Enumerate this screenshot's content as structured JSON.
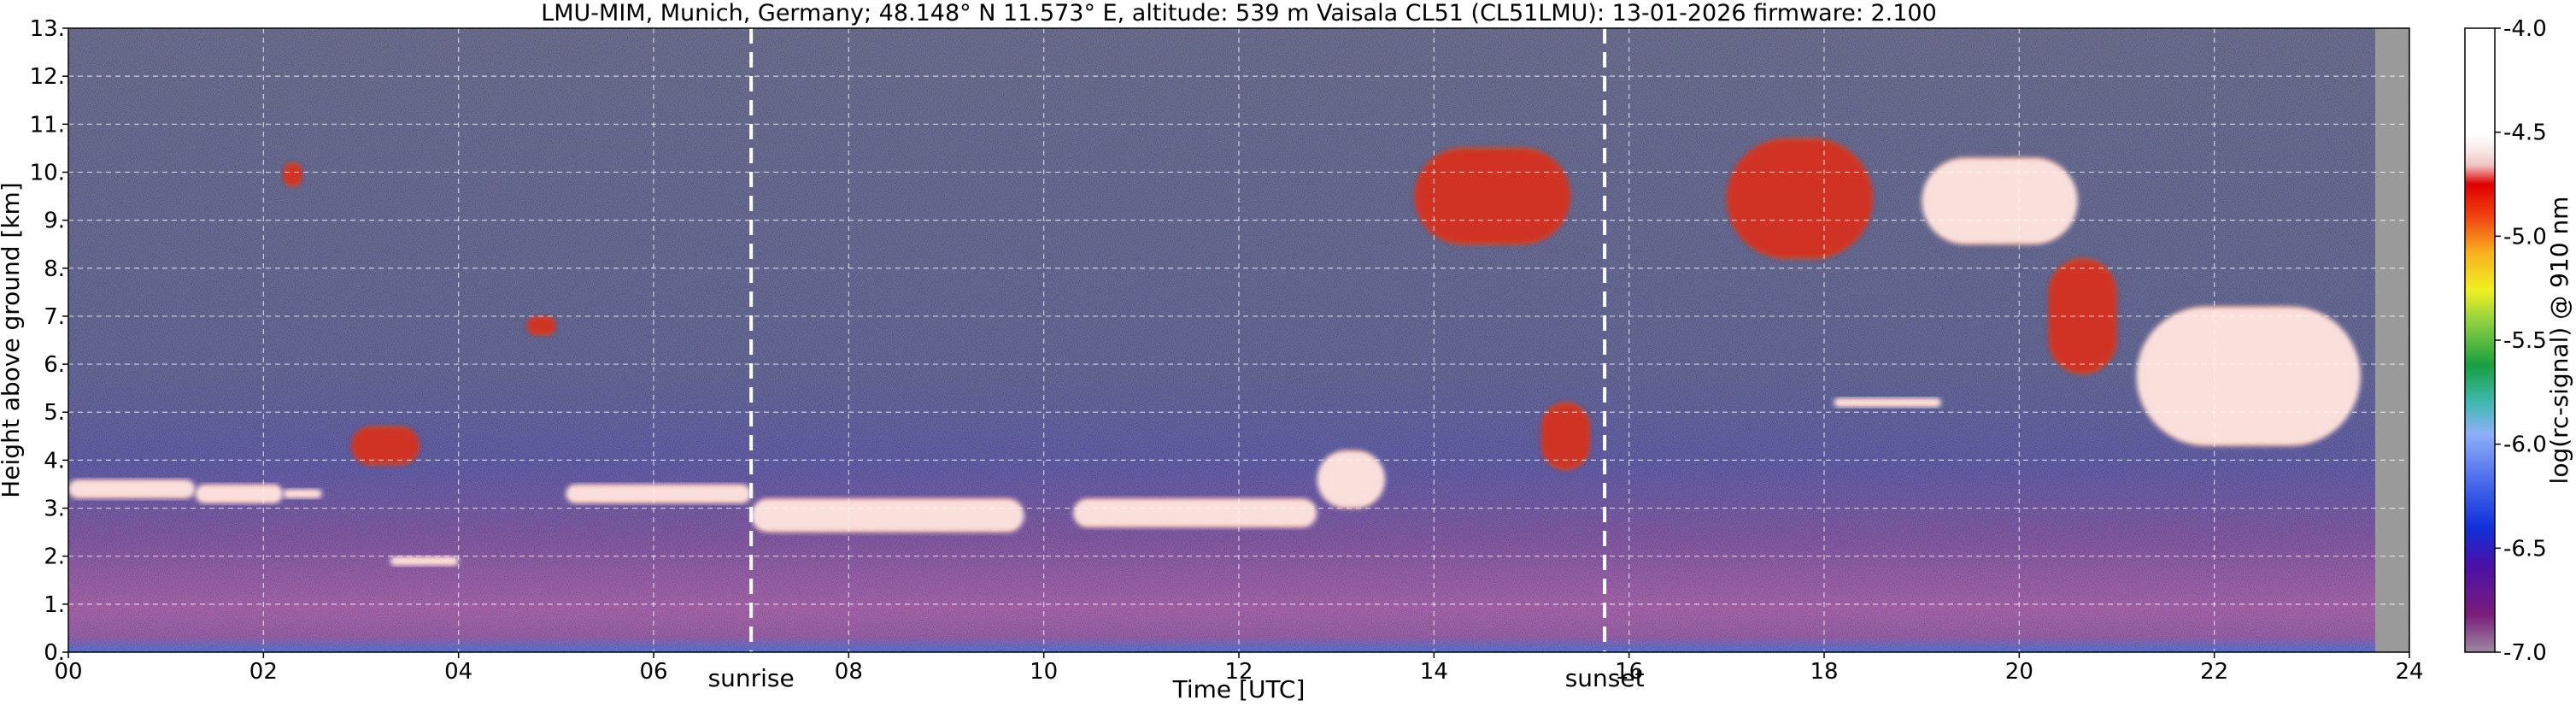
{
  "chart_data": {
    "type": "heatmap",
    "title": "LMU-MIM, Munich, Germany; 48.148° N 11.573° E, altitude: 539 m    Vaisala CL51 (CL51LMU): 13-01-2026    firmware: 2.100",
    "xlabel": "Time [UTC]",
    "ylabel": "Height above ground [km]",
    "xlim": [
      0,
      24
    ],
    "ylim": [
      0,
      13
    ],
    "x_ticks": [
      "00",
      "02",
      "04",
      "06",
      "08",
      "10",
      "12",
      "14",
      "16",
      "18",
      "20",
      "22",
      "24"
    ],
    "y_ticks": [
      "0.",
      "1.",
      "2.",
      "3.",
      "4.",
      "5.",
      "6.",
      "7.",
      "8.",
      "9.",
      "10.",
      "11.",
      "12.",
      "13."
    ],
    "grid": true,
    "annotations": [
      {
        "label": "sunrise",
        "x": 7.0
      },
      {
        "label": "sunset",
        "x": 15.75
      }
    ],
    "no_data_from": 23.65,
    "colorbar": {
      "label": "log(rc-signal) @ 910 nm",
      "range": [
        -7.0,
        -4.0
      ],
      "ticks": [
        "-4.0",
        "-4.5",
        "-5.0",
        "-5.5",
        "-6.0",
        "-6.5",
        "-7.0"
      ]
    },
    "features": [
      {
        "name": "boundary-layer-cloud",
        "x": [
          0.0,
          1.3
        ],
        "y": [
          3.2,
          3.6
        ],
        "level": "strong"
      },
      {
        "name": "boundary-layer-cloud",
        "x": [
          1.3,
          2.2
        ],
        "y": [
          3.1,
          3.5
        ],
        "level": "strong"
      },
      {
        "name": "boundary-layer-cloud",
        "x": [
          2.2,
          2.6
        ],
        "y": [
          3.2,
          3.4
        ],
        "level": "strong"
      },
      {
        "name": "low-cloud-patch",
        "x": [
          3.3,
          4.0
        ],
        "y": [
          1.8,
          2.0
        ],
        "level": "strong"
      },
      {
        "name": "boundary-layer-cloud",
        "x": [
          5.1,
          7.0
        ],
        "y": [
          3.1,
          3.5
        ],
        "level": "strong"
      },
      {
        "name": "boundary-layer-cloud",
        "x": [
          7.0,
          9.8
        ],
        "y": [
          2.5,
          3.2
        ],
        "level": "strong"
      },
      {
        "name": "boundary-layer-cloud",
        "x": [
          10.3,
          12.8
        ],
        "y": [
          2.6,
          3.2
        ],
        "level": "strong"
      },
      {
        "name": "boundary-layer-cloud",
        "x": [
          12.8,
          13.5
        ],
        "y": [
          3.0,
          4.2
        ],
        "level": "strong"
      },
      {
        "name": "mid-cloud",
        "x": [
          2.9,
          3.6
        ],
        "y": [
          3.9,
          4.7
        ],
        "level": "medium"
      },
      {
        "name": "mid-cloud",
        "x": [
          4.7,
          5.0
        ],
        "y": [
          6.6,
          7.0
        ],
        "level": "medium"
      },
      {
        "name": "cirrus",
        "x": [
          2.2,
          2.4
        ],
        "y": [
          9.7,
          10.2
        ],
        "level": "medium"
      },
      {
        "name": "cirrus",
        "x": [
          13.8,
          15.4
        ],
        "y": [
          8.5,
          10.5
        ],
        "level": "medium"
      },
      {
        "name": "cirrus",
        "x": [
          17.0,
          18.5
        ],
        "y": [
          8.2,
          10.7
        ],
        "level": "medium"
      },
      {
        "name": "cirrus",
        "x": [
          19.0,
          20.6
        ],
        "y": [
          8.5,
          10.3
        ],
        "level": "strong"
      },
      {
        "name": "cirrus-fall",
        "x": [
          20.3,
          21.0
        ],
        "y": [
          5.8,
          8.2
        ],
        "level": "medium"
      },
      {
        "name": "mid-cloud",
        "x": [
          21.2,
          23.5
        ],
        "y": [
          4.3,
          7.2
        ],
        "level": "strong"
      },
      {
        "name": "mid-cloud",
        "x": [
          15.1,
          15.6
        ],
        "y": [
          3.8,
          5.2
        ],
        "level": "medium"
      },
      {
        "name": "mid-cloud",
        "x": [
          18.1,
          19.2
        ],
        "y": [
          5.1,
          5.3
        ],
        "level": "strong"
      }
    ]
  }
}
